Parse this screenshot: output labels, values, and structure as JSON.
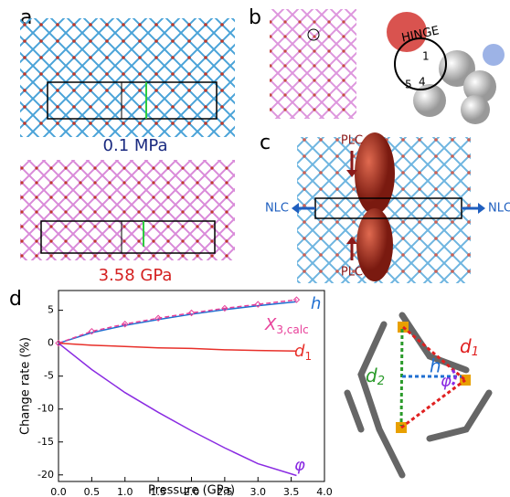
{
  "panels": {
    "a": "a",
    "b": "b",
    "c": "c",
    "d": "d"
  },
  "panel_a": {
    "top_label": "0.1 MPa",
    "bottom_label": "3.58 GPa"
  },
  "panel_b": {
    "hinge": "HINGE",
    "atom_1": "1",
    "atom_4": "4",
    "atom_5": "5"
  },
  "panel_c": {
    "plc_top": "PLC",
    "plc_bottom": "PLC",
    "nlc_left": "NLC",
    "nlc_right": "NLC"
  },
  "panel_d_right": {
    "d1": "d",
    "d1_sub": "1",
    "d2": "d",
    "d2_sub": "2",
    "h": "h",
    "phi": "φ"
  },
  "chart_data": {
    "type": "line",
    "x_label": "Pressure (GPa)",
    "y_label": "Change rate (%)",
    "xlim": [
      0,
      4
    ],
    "ylim": [
      -21,
      8
    ],
    "xticks": [
      {
        "value": 0,
        "label": "0.0"
      },
      0.5,
      {
        "value": 1,
        "label": "1.0"
      },
      1.5,
      {
        "value": 2,
        "label": "2.0"
      },
      2.5,
      {
        "value": 3,
        "label": "3.0"
      },
      3.5,
      {
        "value": 4,
        "label": "4.0"
      }
    ],
    "yticks": [
      -20,
      -15,
      -10,
      -5,
      0,
      5
    ],
    "x": [
      0,
      0.5,
      1,
      1.5,
      2,
      2.5,
      3,
      3.58
    ],
    "series": [
      {
        "name": "h",
        "color": "#1f6fd1",
        "values": [
          0,
          1.6,
          2.7,
          3.6,
          4.4,
          5.1,
          5.7,
          6.3
        ]
      },
      {
        "name": "X",
        "subscript": "3,calc",
        "color": "#e8409a",
        "dashed": true,
        "markers": true,
        "values": [
          0,
          1.8,
          2.9,
          3.8,
          4.6,
          5.3,
          5.9,
          6.6
        ]
      },
      {
        "name": "d",
        "subscript": "1",
        "color": "#e8302a",
        "values": [
          0,
          -0.3,
          -0.5,
          -0.7,
          -0.8,
          -1.0,
          -1.1,
          -1.2
        ]
      },
      {
        "name": "φ",
        "color": "#8a2be2",
        "values": [
          0,
          -4,
          -7.5,
          -10.5,
          -13.3,
          -15.9,
          -18.3,
          -20.1
        ]
      }
    ]
  }
}
